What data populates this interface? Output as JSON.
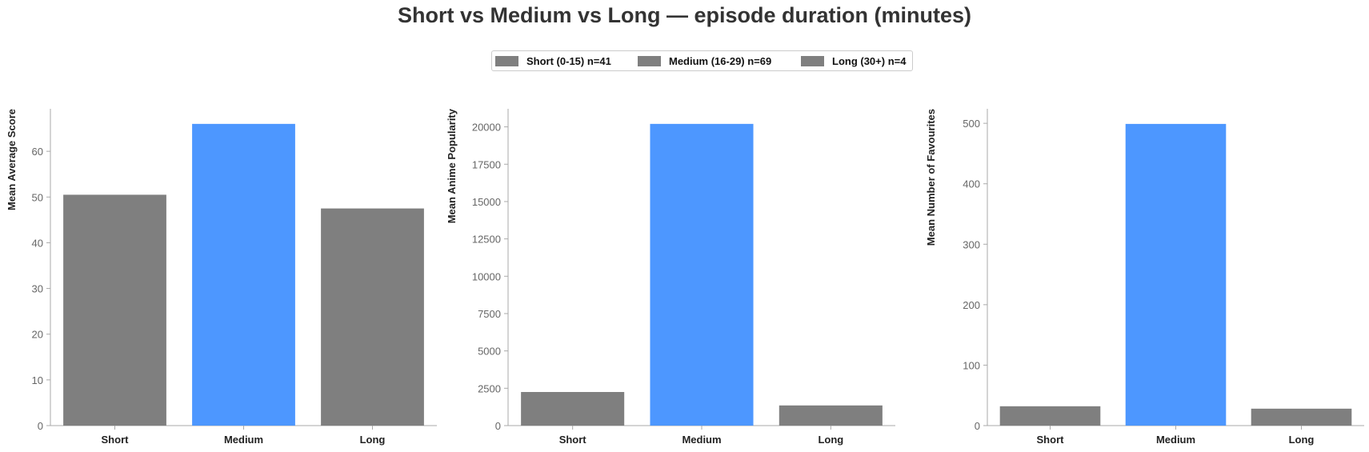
{
  "title": "Short vs Medium vs Long — episode duration (minutes)",
  "colors": {
    "default": "#7f7f7f",
    "highlight": "#4d97ff",
    "axis": "#aaaaaa"
  },
  "legend": [
    {
      "label": "Short (0-15) n=41",
      "color": "#7f7f7f"
    },
    {
      "label": "Medium (16-29) n=69",
      "color": "#7f7f7f"
    },
    {
      "label": "Long (30+) n=4",
      "color": "#7f7f7f"
    }
  ],
  "chart_data": [
    {
      "type": "bar",
      "categories": [
        "Short",
        "Medium",
        "Long"
      ],
      "values": [
        50.5,
        66.0,
        47.5
      ],
      "highlight_index": 1,
      "ylabel": "Mean Average Score",
      "ylim": [
        0,
        69.3
      ],
      "yticks": [
        0,
        10,
        20,
        30,
        40,
        50,
        60
      ]
    },
    {
      "type": "bar",
      "categories": [
        "Short",
        "Medium",
        "Long"
      ],
      "values": [
        2250,
        20200,
        1350
      ],
      "highlight_index": 1,
      "ylabel": "Mean Anime Popularity",
      "ylim": [
        0,
        21210
      ],
      "yticks": [
        0,
        2500,
        5000,
        7500,
        10000,
        12500,
        15000,
        17500,
        20000
      ]
    },
    {
      "type": "bar",
      "categories": [
        "Short",
        "Medium",
        "Long"
      ],
      "values": [
        32,
        499,
        28
      ],
      "highlight_index": 1,
      "ylabel": "Mean Number of Favourites",
      "ylim": [
        0,
        524
      ],
      "yticks": [
        0,
        100,
        200,
        300,
        400,
        500
      ]
    }
  ]
}
